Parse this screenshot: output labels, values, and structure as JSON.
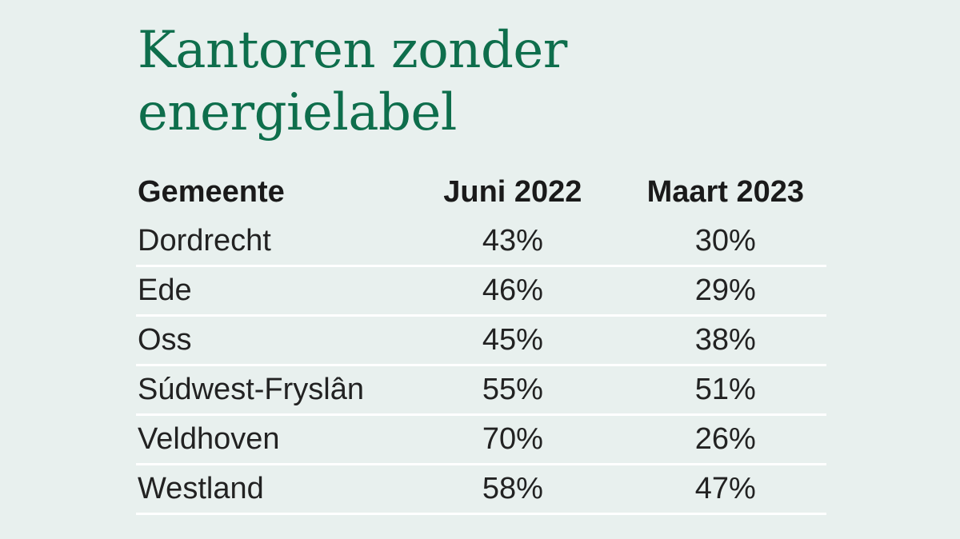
{
  "chart_data": {
    "type": "table",
    "title": "Kantoren zonder energielabel",
    "columns": [
      "Gemeente",
      "Juni 2022",
      "Maart 2023"
    ],
    "rows": [
      [
        "Dordrecht",
        "43%",
        "30%"
      ],
      [
        "Ede",
        "46%",
        "29%"
      ],
      [
        "Oss",
        "45%",
        "38%"
      ],
      [
        "Súdwest-Fryslân",
        "55%",
        "51%"
      ],
      [
        "Veldhoven",
        "70%",
        "26%"
      ],
      [
        "Westland",
        "58%",
        "47%"
      ]
    ]
  },
  "colors": {
    "background": "#e8f0ee",
    "title": "#0e6e4c",
    "text": "#222222",
    "divider": "#ffffff"
  }
}
